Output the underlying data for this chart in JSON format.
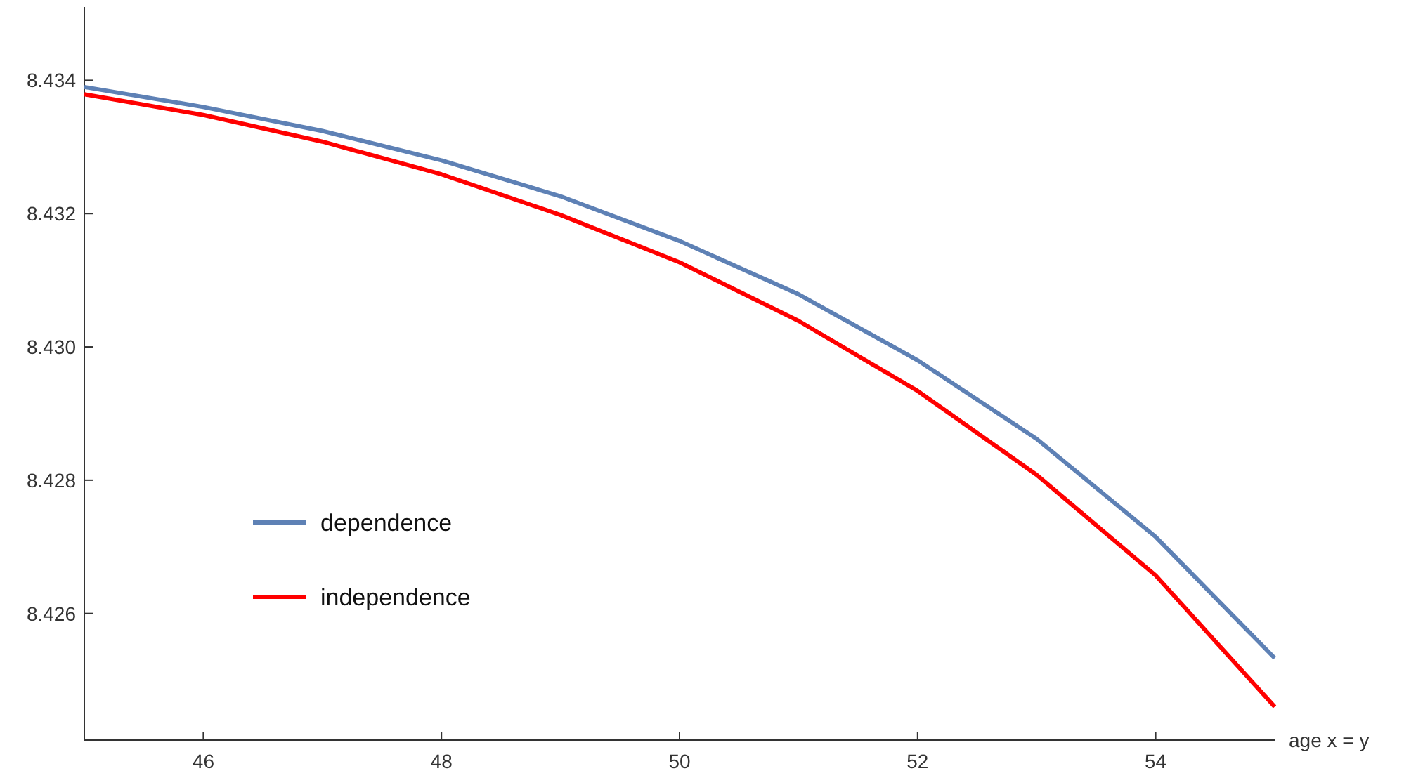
{
  "chart_data": {
    "type": "line",
    "xlabel": "age x = y",
    "x": [
      45,
      46,
      47,
      48,
      49,
      50,
      51,
      52,
      53,
      54,
      55
    ],
    "xlim": [
      45,
      55
    ],
    "xticks": [
      46,
      48,
      50,
      52,
      54
    ],
    "ylim": [
      8.4241,
      8.4351
    ],
    "yticks": [
      8.426,
      8.428,
      {
        "value": 8.43,
        "label": "8.430"
      },
      8.432,
      8.434
    ],
    "legend": "bottom left",
    "grid": false,
    "line_style": "solid",
    "series": [
      {
        "name": "dependence",
        "color": "#5e81b5",
        "values": [
          8.4339,
          8.4336,
          8.43324,
          8.4328,
          8.43226,
          8.43159,
          8.43079,
          8.4298,
          8.42862,
          8.42715,
          8.42533
        ]
      },
      {
        "name": "independence",
        "color": "#ff0000",
        "values": [
          8.43379,
          8.43348,
          8.43308,
          8.43259,
          8.43198,
          8.43127,
          8.43039,
          8.42934,
          8.42808,
          8.42657,
          8.4246
        ]
      }
    ]
  }
}
